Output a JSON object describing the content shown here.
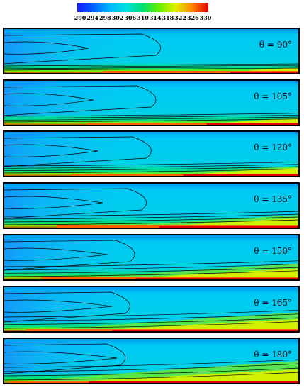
{
  "chart_data": {
    "type": "heatmap",
    "colorbar": {
      "ticks": [
        "290",
        "294",
        "298",
        "302",
        "306",
        "310",
        "314",
        "318",
        "322",
        "326",
        "330"
      ],
      "range": [
        290,
        330
      ],
      "colors": [
        "#1a1aff",
        "#0080ff",
        "#00c8ff",
        "#00e0c0",
        "#00e070",
        "#40f000",
        "#a0f000",
        "#f0f000",
        "#ff9000",
        "#ff3000",
        "#e00000"
      ]
    },
    "panels": [
      {
        "label": "θ = 90°",
        "angle": 90
      },
      {
        "label": "θ = 105°",
        "angle": 105
      },
      {
        "label": "θ = 120°",
        "angle": 120
      },
      {
        "label": "θ = 135°",
        "angle": 135
      },
      {
        "label": "θ = 150°",
        "angle": 150
      },
      {
        "label": "θ = 165°",
        "angle": 165
      },
      {
        "label": "θ = 180°",
        "angle": 180
      }
    ]
  }
}
